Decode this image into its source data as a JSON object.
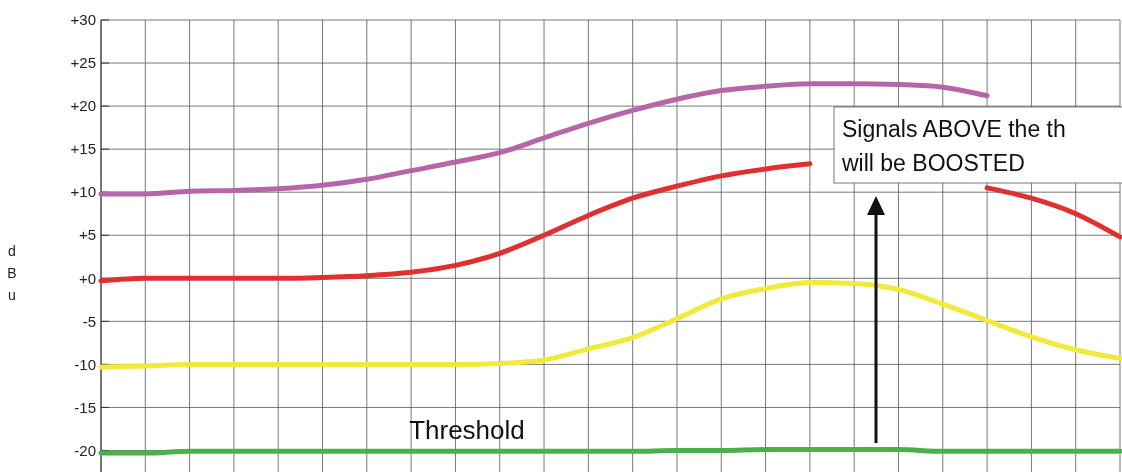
{
  "chart_data": {
    "type": "line",
    "ylabel": "dBu",
    "categories": [
      null,
      null,
      null,
      null,
      null,
      null,
      null,
      null,
      null,
      null,
      null,
      null,
      null,
      null,
      null,
      null,
      null,
      null,
      null,
      null,
      null,
      null,
      null,
      null
    ],
    "series": [
      {
        "color": "#b466a8",
        "values": [
          9.8,
          9.8,
          10.1,
          10.2,
          10.4,
          10.8,
          11.5,
          12.5,
          13.5,
          14.6,
          16.3,
          18.0,
          19.5,
          20.8,
          21.8,
          22.3,
          22.6,
          22.6,
          22.5,
          22.2,
          21.2,
          null,
          null,
          null
        ]
      },
      {
        "color": "#e03030",
        "values": [
          -0.3,
          0.0,
          0.0,
          0.0,
          0.0,
          0.1,
          0.3,
          0.7,
          1.5,
          2.9,
          5.0,
          7.3,
          9.3,
          10.7,
          11.9,
          12.7,
          13.3,
          null,
          null,
          null,
          10.5,
          9.3,
          7.5,
          4.8
        ]
      },
      {
        "color": "#f0ea3c",
        "values": [
          -10.3,
          -10.2,
          -10.0,
          -10.0,
          -10.0,
          -10.0,
          -10.0,
          -10.0,
          -10.0,
          -9.9,
          -9.5,
          -8.2,
          -6.9,
          -4.7,
          -2.4,
          -1.2,
          -0.5,
          -0.6,
          -1.3,
          -3.0,
          -4.9,
          -6.8,
          -8.3,
          -9.3
        ]
      },
      {
        "name": "Threshold",
        "color": "#4cb04a",
        "values": [
          -20.3,
          -20.3,
          -20.1,
          -20.1,
          -20.1,
          -20.1,
          -20.1,
          -20.1,
          -20.1,
          -20.1,
          -20.1,
          -20.1,
          -20.1,
          -20.0,
          -20.0,
          -19.9,
          -19.9,
          -19.9,
          -19.9,
          -20.1,
          -20.1,
          -20.1,
          -20.1,
          -20.1
        ]
      }
    ],
    "ylim": [
      -22.5,
      30
    ],
    "yticks": [
      {
        "value": 30,
        "label": "+30"
      },
      {
        "value": 25,
        "label": "+25"
      },
      {
        "value": 20,
        "label": "+20"
      },
      {
        "value": 15,
        "label": "+15"
      },
      {
        "value": 10,
        "label": "+10"
      },
      {
        "value": 5,
        "label": "+5"
      },
      {
        "value": 0,
        "label": "+0"
      },
      -5,
      -10,
      -15,
      -20
    ],
    "grid": true,
    "annotations": [
      "Signals ABOVE the th\nwill be BOOSTED"
    ]
  }
}
